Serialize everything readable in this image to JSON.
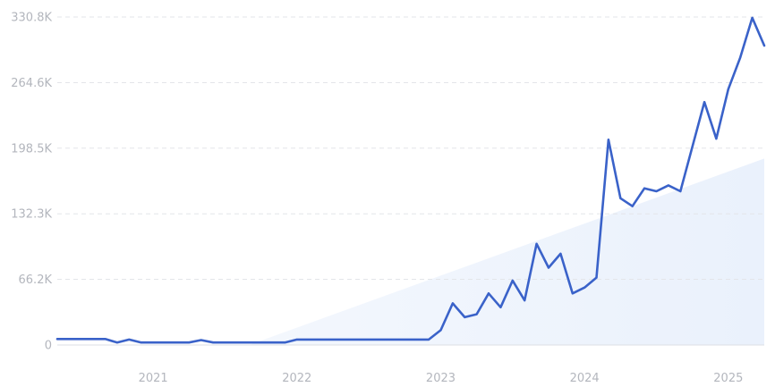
{
  "chart_data": {
    "type": "line",
    "title": "",
    "xlabel": "",
    "ylabel": "",
    "ylim": [
      0,
      330800
    ],
    "yticks": [
      {
        "value": 0,
        "label": "0"
      },
      {
        "value": 66200,
        "label": "66.2K"
      },
      {
        "value": 132300,
        "label": "132.3K"
      },
      {
        "value": 198500,
        "label": "198.5K"
      },
      {
        "value": 264600,
        "label": "264.6K"
      },
      {
        "value": 330800,
        "label": "330.8K"
      }
    ],
    "xlim": [
      "2020-05",
      "2025-04"
    ],
    "xticks": [
      {
        "value": "2021-01",
        "label": "2021"
      },
      {
        "value": "2022-01",
        "label": "2022"
      },
      {
        "value": "2023-01",
        "label": "2023"
      },
      {
        "value": "2024-01",
        "label": "2024"
      },
      {
        "value": "2025-01",
        "label": "2025"
      }
    ],
    "grid": true,
    "legend": "none",
    "colors": {
      "line": "#3a62c9",
      "trend_fill": "#eaf1fc",
      "grid": "#e3e5e9",
      "tick_text": "#b3b6bd"
    },
    "trend_area": {
      "x": [
        "2021-09",
        "2025-04"
      ],
      "y": [
        0,
        188000
      ]
    },
    "series": [
      {
        "x": [
          "2020-05",
          "2020-06",
          "2020-07",
          "2020-08",
          "2020-09",
          "2020-10",
          "2020-11",
          "2020-12",
          "2021-01",
          "2021-02",
          "2021-03",
          "2021-04",
          "2021-05",
          "2021-06",
          "2021-07",
          "2021-08",
          "2021-09",
          "2021-10",
          "2021-11",
          "2021-12",
          "2022-01",
          "2022-02",
          "2022-03",
          "2022-04",
          "2022-05",
          "2022-06",
          "2022-07",
          "2022-08",
          "2022-09",
          "2022-10",
          "2022-11",
          "2022-12",
          "2023-01",
          "2023-02",
          "2023-03",
          "2023-04",
          "2023-05",
          "2023-06",
          "2023-07",
          "2023-08",
          "2023-09",
          "2023-10",
          "2023-11",
          "2023-12",
          "2024-01",
          "2024-02",
          "2024-03",
          "2024-04",
          "2024-05",
          "2024-06",
          "2024-07",
          "2024-08",
          "2024-09",
          "2024-10",
          "2024-11",
          "2024-12",
          "2025-01",
          "2025-02",
          "2025-03",
          "2025-04"
        ],
        "values": [
          6000,
          6000,
          6000,
          6000,
          6000,
          2500,
          5500,
          2500,
          2500,
          2500,
          2500,
          2500,
          5000,
          2500,
          2500,
          2500,
          2500,
          2500,
          2500,
          2500,
          5500,
          5500,
          5500,
          5500,
          5500,
          5500,
          5500,
          5500,
          5500,
          5500,
          5500,
          5500,
          15000,
          42000,
          28000,
          31000,
          52000,
          38000,
          65000,
          45000,
          102000,
          78000,
          92000,
          52000,
          58000,
          68000,
          207000,
          148000,
          140000,
          158000,
          155000,
          161000,
          155000,
          200000,
          245000,
          208000,
          258000,
          290000,
          330000,
          302000
        ]
      }
    ]
  }
}
